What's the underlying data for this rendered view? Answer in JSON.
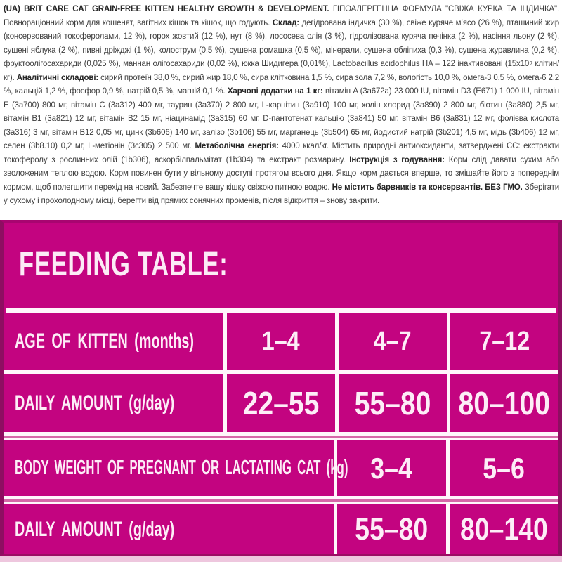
{
  "brand_colors": {
    "magenta": "#c30480",
    "magenta_edge": "#8e0e61",
    "text_dark": "#3e3e3e",
    "table_text": "#fdedf7"
  },
  "product_info": {
    "segments": [
      {
        "bold": true,
        "text": "(UA) BRIT CARE CAT GRAIN-FREE KITTEN HEALTHY GROWTH & DEVELOPMENT. "
      },
      {
        "bold": false,
        "text": "ГІПОАЛЕРГЕННА ФОРМУЛА \"СВІЖА КУРКА ТА ІНДИЧКА\". Повнораціонний корм для кошенят, вагітних кішок та кішок, що годують. "
      },
      {
        "bold": true,
        "text": "Склад: "
      },
      {
        "bold": false,
        "text": "дегідрована індичка (30 %), свіже куряче м’ясо (26 %), пташиний жир (консервований токоферолами, 12 %), горох жовтий (12 %), нут (8 %), лососева олія (3 %), гідролізована куряча печінка (2 %), насіння льону (2 %), сушені яблука (2 %), пивні дріжджі (1 %), колострум (0,5 %), сушена ромашка (0,5 %), мінерали, сушена обліпиха (0,3 %), сушена журавлина (0,2 %), фруктоолігосахариди (0,025 %), маннан олігосахариди (0,02 %), юкка Шидигера (0,01%), Lactobacillus acidophilus HA – 122 інактивовані (15x10⁹ клітин/кг). "
      },
      {
        "bold": true,
        "text": "Аналітичні складові: "
      },
      {
        "bold": false,
        "text": "сирий протеїн 38,0 %, сирий жир 18,0 %, сира клітковина 1,5 %, сира зола 7,2 %, вологість 10,0 %, омега-3 0,5 %, омега-6 2,2 %, кальцій 1,2 %, фосфор 0,9 %, натрій 0,5 %, магній 0,1 %. "
      },
      {
        "bold": true,
        "text": "Харчові додатки на 1 кг: "
      },
      {
        "bold": false,
        "text": "вітамін A (3a672a) 23 000 IU, вітамін D3 (E671) 1 000 IU, вітамін E (3a700) 800 мг, вітамін C (3a312) 400 мг, таурин (3a370) 2 800 мг, L-карнітин (3a910) 100 мг, холін хлорид (3a890) 2 800 мг, біотин (3a880) 2,5 мг, вітамін B1 (3a821) 12 мг, вітамін B2 15 мг, ніацинамід (3a315) 60 мг, D-пантотенат кальцію (3a841) 50 мг, вітамін B6 (3a831) 12 мг, фолієва кислота (3a316) 3 мг, вітамін B12 0,05 мг, цинк (3b606) 140 мг, залізо (3b106) 55 мг, марганець (3b504) 65 мг, йодистий натрій (3b201) 4,5 мг, мідь (3b406) 12 мг, селен (3b8.10) 0,2 мг, L-метіонін (3c305) 2 500 мг. "
      },
      {
        "bold": true,
        "text": "Метаболічна енергія: "
      },
      {
        "bold": false,
        "text": "4000 ккал/кг. Містить природні антиоксиданти, затверджені ЄС: екстракти токоферолу з рослинних олій (1b306), аскорбілпальмітат (1b304) та екстракт розмарину. "
      },
      {
        "bold": true,
        "text": "Інструкція з годування: "
      },
      {
        "bold": false,
        "text": "Корм слід давати сухим або зволоженим теплою водою. Корм повинен бути у вільному доступі протягом всього дня. Якщо корм дається вперше, то змішайте його з попереднім кормом, щоб полегшити перехід на новий. Забезпечте вашу кішку свіжою питною водою. "
      },
      {
        "bold": true,
        "text": "Не містить барвників та консервантів. БЕЗ ГМО. "
      },
      {
        "bold": false,
        "text": "Зберігати у сухому і прохолодному місці, берегти від прямих сонячних променів, після відкриття – знову закрити."
      }
    ]
  },
  "feeding_table": {
    "title": "FEEDING TABLE:",
    "rows": [
      {
        "label": "AGE OF KITTEN (months)",
        "values": [
          "1–4",
          "4–7",
          "7–12"
        ]
      },
      {
        "label": "DAILY AMOUNT (g/day)",
        "values": [
          "22–55",
          "55–80",
          "80–100"
        ]
      },
      {
        "label": "BODY WEIGHT OF PREGNANT OR LACTATING CAT (kg)",
        "values": [
          "3–4",
          "5–6"
        ]
      },
      {
        "label": "DAILY AMOUNT (g/day)",
        "values": [
          "55–80",
          "80–140"
        ]
      }
    ]
  }
}
